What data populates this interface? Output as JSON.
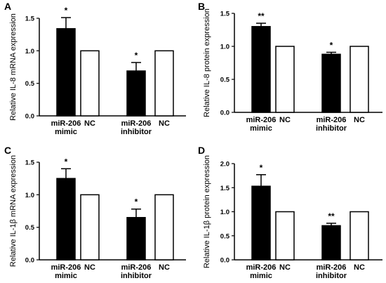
{
  "chart_data": [
    {
      "panel": "A",
      "type": "bar",
      "ylabel": "Relative IL-8 mRNA expression",
      "ylim": [
        0,
        1.5
      ],
      "yticks": [
        "0.0",
        "0.5",
        "1.0",
        "1.5"
      ],
      "categories": [
        "miR-206\nmimic",
        "NC",
        "miR-206\ninhibitor",
        "NC"
      ],
      "values": [
        1.34,
        1.0,
        0.69,
        1.0
      ],
      "errors": [
        0.17,
        0,
        0.13,
        0
      ],
      "fills": [
        "#000000",
        "#ffffff",
        "#000000",
        "#ffffff"
      ],
      "significance": [
        "*",
        "",
        "*",
        ""
      ]
    },
    {
      "panel": "B",
      "type": "bar",
      "ylabel": "Relative IL-8 protein expression",
      "ylim": [
        0,
        1.5
      ],
      "yticks": [
        "0.0",
        "0.5",
        "1.0",
        "1.5"
      ],
      "categories": [
        "miR-206\nmimic",
        "NC",
        "miR-206\ninhibitor",
        "NC"
      ],
      "values": [
        1.3,
        1.0,
        0.88,
        1.0
      ],
      "errors": [
        0.05,
        0,
        0.03,
        0
      ],
      "fills": [
        "#000000",
        "#ffffff",
        "#000000",
        "#ffffff"
      ],
      "significance": [
        "**",
        "",
        "*",
        ""
      ]
    },
    {
      "panel": "C",
      "type": "bar",
      "ylabel": "Relative IL-1β  mRNA expression",
      "ylim": [
        0,
        1.5
      ],
      "yticks": [
        "0.0",
        "0.5",
        "1.0",
        "1.5"
      ],
      "categories": [
        "miR-206\nmimic",
        "NC",
        "miR-206\ninhibitor",
        "NC"
      ],
      "values": [
        1.25,
        1.0,
        0.65,
        1.0
      ],
      "errors": [
        0.15,
        0,
        0.13,
        0
      ],
      "fills": [
        "#000000",
        "#ffffff",
        "#000000",
        "#ffffff"
      ],
      "significance": [
        "*",
        "",
        "*",
        ""
      ]
    },
    {
      "panel": "D",
      "type": "bar",
      "ylabel": "Relative IL-1β  protein expression",
      "ylim": [
        0,
        2.0
      ],
      "yticks": [
        "0.0",
        "0.5",
        "1.0",
        "1.5",
        "2.0"
      ],
      "categories": [
        "miR-206\nmimic",
        "NC",
        "miR-206\ninhibitor",
        "NC"
      ],
      "values": [
        1.53,
        1.0,
        0.71,
        1.0
      ],
      "errors": [
        0.24,
        0,
        0.05,
        0
      ],
      "fills": [
        "#000000",
        "#ffffff",
        "#000000",
        "#ffffff"
      ],
      "significance": [
        "*",
        "",
        "**",
        ""
      ]
    }
  ]
}
